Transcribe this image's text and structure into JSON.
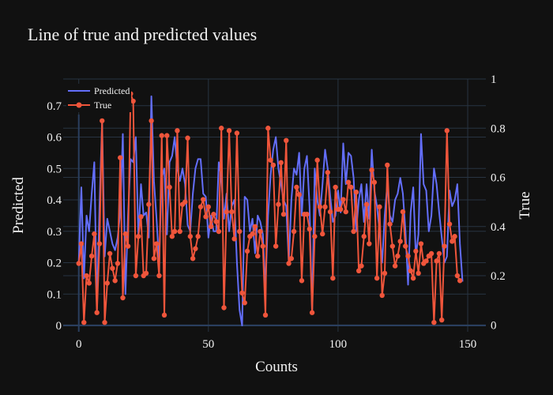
{
  "chart_data": {
    "type": "line",
    "title": "Line of true and predicted values",
    "xlabel": "Counts",
    "ylabel_left": "Predicted",
    "ylabel_right": "True",
    "xlim": [
      -6,
      157
    ],
    "ylim_left": [
      -0.02,
      0.785
    ],
    "ylim_right": [
      -0.028,
      1.0
    ],
    "x_ticks": [
      "0",
      "50",
      "100",
      "150"
    ],
    "y_left_ticks": [
      "0",
      "0.1",
      "0.2",
      "0.3",
      "0.4",
      "0.5",
      "0.6",
      "0.7"
    ],
    "y_right_ticks": [
      "0",
      "0.2",
      "0.4",
      "0.6",
      "0.8",
      "1"
    ],
    "grid": true,
    "legend_position": "top-left",
    "series": [
      {
        "name": "Predicted",
        "axis": "left",
        "color": "#636efa",
        "mode": "lines",
        "values": [
          0.2,
          0.44,
          0.15,
          0.35,
          0.3,
          0.42,
          0.52,
          0.05,
          0.38,
          0.65,
          0.22,
          0.34,
          0.3,
          0.26,
          0.24,
          0.28,
          0.36,
          0.61,
          0.1,
          0.35,
          0.53,
          0.52,
          0.6,
          0.28,
          0.45,
          0.35,
          0.36,
          0.28,
          0.73,
          0.46,
          0.34,
          0.2,
          0.47,
          0.5,
          0.29,
          0.52,
          0.54,
          0.6,
          0.5,
          0.46,
          0.5,
          0.45,
          0.32,
          0.3,
          0.42,
          0.5,
          0.53,
          0.53,
          0.42,
          0.41,
          0.28,
          0.35,
          0.3,
          0.3,
          0.52,
          0.47,
          0.34,
          0.42,
          0.3,
          0.38,
          0.4,
          0.2,
          0.05,
          0.0,
          0.41,
          0.4,
          0.3,
          0.34,
          0.23,
          0.35,
          0.33,
          0.29,
          0.12,
          0.35,
          0.48,
          0.56,
          0.6,
          0.5,
          0.45,
          0.4,
          0.38,
          0.2,
          0.4,
          0.5,
          0.48,
          0.55,
          0.35,
          0.5,
          0.54,
          0.38,
          0.04,
          0.5,
          0.4,
          0.35,
          0.45,
          0.56,
          0.5,
          0.41,
          0.33,
          0.35,
          0.43,
          0.36,
          0.58,
          0.45,
          0.55,
          0.54,
          0.47,
          0.3,
          0.4,
          0.45,
          0.33,
          0.45,
          0.34,
          0.56,
          0.43,
          0.38,
          0.3,
          0.2,
          0.35,
          0.45,
          0.35,
          0.33,
          0.4,
          0.42,
          0.47,
          0.42,
          0.3,
          0.13,
          0.36,
          0.44,
          0.22,
          0.29,
          0.61,
          0.45,
          0.43,
          0.3,
          0.35,
          0.5,
          0.45,
          0.36,
          0.28,
          0.2,
          0.22,
          0.43,
          0.38,
          0.4,
          0.45,
          0.26,
          0.14
        ]
      },
      {
        "name": "True",
        "axis": "right",
        "color": "#ef553b",
        "mode": "lines+markers",
        "values": [
          0.25,
          0.33,
          0.01,
          0.2,
          0.17,
          0.28,
          0.37,
          0.05,
          0.33,
          0.83,
          0.01,
          0.17,
          0.29,
          0.23,
          0.18,
          0.25,
          0.68,
          0.11,
          0.37,
          0.32,
          0.94,
          0.91,
          0.2,
          0.36,
          0.44,
          0.2,
          0.21,
          0.49,
          0.83,
          0.27,
          0.33,
          0.2,
          0.77,
          0.04,
          0.77,
          0.56,
          0.36,
          0.38,
          0.79,
          0.38,
          0.49,
          0.5,
          0.76,
          0.36,
          0.27,
          0.31,
          0.36,
          0.48,
          0.51,
          0.44,
          0.48,
          0.4,
          0.45,
          0.42,
          0.38,
          0.8,
          0.07,
          0.46,
          0.79,
          0.46,
          0.35,
          0.78,
          0.38,
          0.13,
          0.09,
          0.3,
          0.36,
          0.37,
          0.4,
          0.28,
          0.38,
          0.32,
          0.04,
          0.8,
          0.67,
          0.65,
          0.32,
          0.49,
          0.66,
          0.45,
          0.75,
          0.25,
          0.27,
          0.38,
          0.56,
          0.53,
          0.18,
          0.45,
          0.45,
          0.39,
          0.05,
          0.36,
          0.67,
          0.48,
          0.37,
          0.48,
          0.62,
          0.46,
          0.19,
          0.56,
          0.47,
          0.47,
          0.51,
          0.46,
          0.58,
          0.56,
          0.38,
          0.54,
          0.22,
          0.24,
          0.36,
          0.49,
          0.33,
          0.63,
          0.58,
          0.19,
          0.48,
          0.12,
          0.21,
          0.65,
          0.41,
          0.32,
          0.24,
          0.28,
          0.34,
          0.46,
          0.32,
          0.28,
          0.22,
          0.19,
          0.3,
          0.21,
          0.33,
          0.25,
          0.26,
          0.28,
          0.29,
          0.01,
          0.26,
          0.29,
          0.02,
          0.32,
          0.79,
          0.41,
          0.34,
          0.36,
          0.2,
          0.18
        ]
      }
    ]
  }
}
